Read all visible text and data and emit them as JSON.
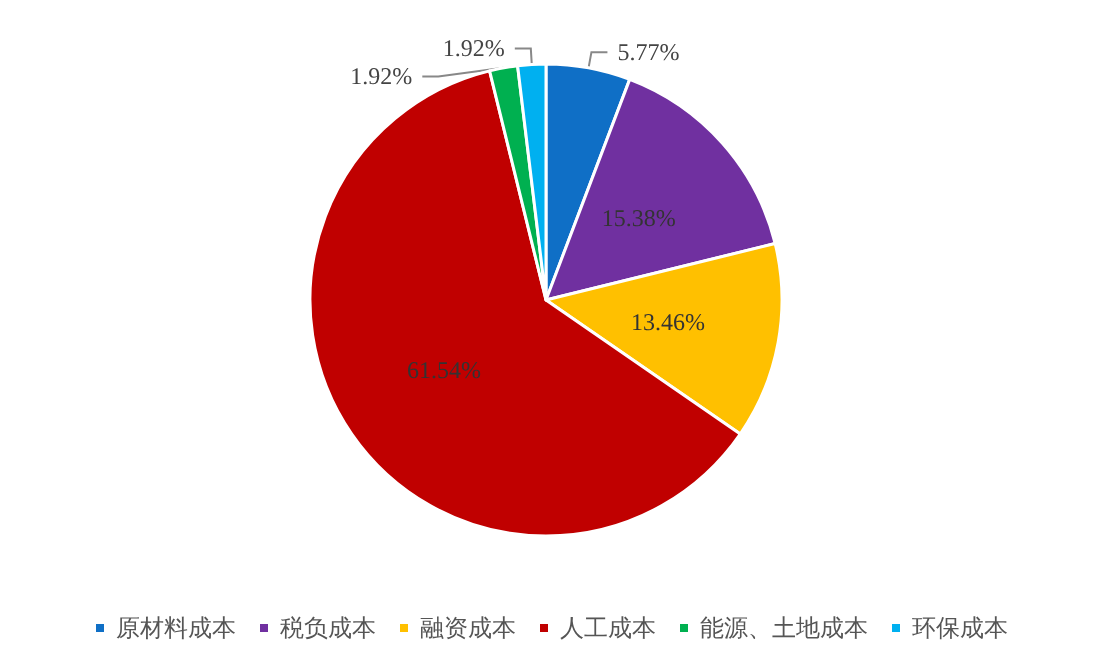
{
  "chart_data": {
    "type": "pie",
    "categories": [
      "原材料成本",
      "税负成本",
      "融资成本",
      "人工成本",
      "能源、土地成本",
      "环保成本"
    ],
    "values": [
      5.77,
      15.38,
      13.46,
      61.54,
      1.92,
      1.92
    ],
    "colors": [
      "#0f6fc6",
      "#7030a0",
      "#ffc000",
      "#c00000",
      "#00b050",
      "#00b0f0"
    ],
    "value_labels": [
      "5.77%",
      "15.38%",
      "13.46%",
      "61.54%",
      "1.92%",
      "1.92%"
    ],
    "legend": "bottom"
  }
}
